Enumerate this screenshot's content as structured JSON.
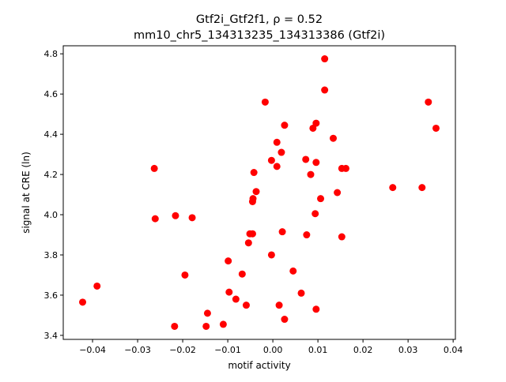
{
  "chart_data": {
    "type": "scatter",
    "title_line1": "Gtf2i_Gtf2f1, ρ = 0.52",
    "title_line2": "mm10_chr5_134313235_134313386 (Gtf2i)",
    "xlabel": "motif activity",
    "ylabel": "signal at CRE (ln)",
    "xlim": [
      -0.0465,
      0.0405
    ],
    "ylim": [
      3.38,
      4.84
    ],
    "xticks": [
      -0.04,
      -0.03,
      -0.02,
      -0.01,
      0.0,
      0.01,
      0.02,
      0.03,
      0.04
    ],
    "xtick_labels": [
      "−0.04",
      "−0.03",
      "−0.02",
      "−0.01",
      "0.00",
      "0.01",
      "0.02",
      "0.03",
      "0.04"
    ],
    "yticks": [
      3.4,
      3.6,
      3.8,
      4.0,
      4.2,
      4.4,
      4.6,
      4.8
    ],
    "ytick_labels": [
      "3.4",
      "3.6",
      "3.8",
      "4.0",
      "4.2",
      "4.4",
      "4.6",
      "4.8"
    ],
    "grid": false,
    "marker_color": "#ff0000",
    "points": [
      [
        0.0115,
        4.775
      ],
      [
        0.0115,
        4.62
      ],
      [
        -0.0017,
        4.56
      ],
      [
        0.0345,
        4.56
      ],
      [
        0.0362,
        4.43
      ],
      [
        0.0026,
        4.445
      ],
      [
        0.0096,
        4.455
      ],
      [
        0.0089,
        4.43
      ],
      [
        0.0134,
        4.38
      ],
      [
        0.0009,
        4.36
      ],
      [
        0.0019,
        4.31
      ],
      [
        -0.0003,
        4.27
      ],
      [
        0.0073,
        4.275
      ],
      [
        0.0096,
        4.26
      ],
      [
        0.0009,
        4.24
      ],
      [
        -0.0263,
        4.23
      ],
      [
        0.0153,
        4.23
      ],
      [
        0.0162,
        4.23
      ],
      [
        -0.0042,
        4.21
      ],
      [
        0.0084,
        4.2
      ],
      [
        0.0266,
        4.135
      ],
      [
        0.0331,
        4.135
      ],
      [
        -0.0037,
        4.115
      ],
      [
        0.0143,
        4.11
      ],
      [
        0.0106,
        4.08
      ],
      [
        -0.0044,
        4.08
      ],
      [
        -0.0045,
        4.065
      ],
      [
        0.0094,
        4.005
      ],
      [
        -0.0216,
        3.995
      ],
      [
        -0.0179,
        3.985
      ],
      [
        -0.0261,
        3.98
      ],
      [
        -0.0051,
        3.905
      ],
      [
        -0.0045,
        3.905
      ],
      [
        0.0021,
        3.915
      ],
      [
        0.0075,
        3.9
      ],
      [
        0.0153,
        3.89
      ],
      [
        -0.0054,
        3.86
      ],
      [
        -0.0003,
        3.8
      ],
      [
        -0.0099,
        3.77
      ],
      [
        0.0045,
        3.72
      ],
      [
        -0.0195,
        3.7
      ],
      [
        -0.0068,
        3.705
      ],
      [
        -0.039,
        3.645
      ],
      [
        -0.0097,
        3.615
      ],
      [
        0.0063,
        3.61
      ],
      [
        -0.0082,
        3.58
      ],
      [
        -0.0422,
        3.565
      ],
      [
        -0.0059,
        3.55
      ],
      [
        0.0014,
        3.55
      ],
      [
        -0.0145,
        3.51
      ],
      [
        0.0096,
        3.53
      ],
      [
        0.0026,
        3.48
      ],
      [
        -0.011,
        3.455
      ],
      [
        -0.0218,
        3.445
      ],
      [
        -0.0148,
        3.445
      ]
    ]
  }
}
